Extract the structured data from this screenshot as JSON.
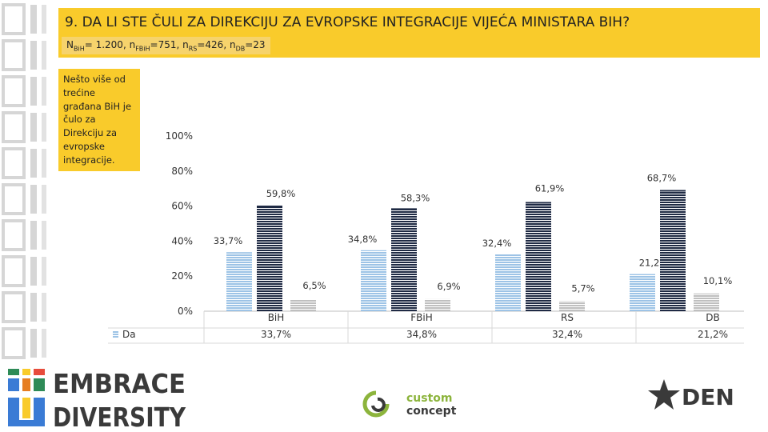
{
  "header": {
    "title": "9. DA LI STE ČULI ZA DIREKCIJU ZA EVROPSKE INTEGRACIJE VIJEĆA MINISTARA BIH?",
    "samples": [
      {
        "label": "N",
        "sub": "BiH",
        "value": "= 1.200, "
      },
      {
        "label": "n",
        "sub": "FBiH",
        "value": "=751, "
      },
      {
        "label": "n",
        "sub": "RS",
        "value": "=426, "
      },
      {
        "label": "n",
        "sub": "DB",
        "value": "=23"
      }
    ]
  },
  "note": {
    "text": "Nešto više od trećine građana BiH je čulo za Direkciju za evropske integracije."
  },
  "chart_data": {
    "type": "bar",
    "categories": [
      "BiH",
      "FBiH",
      "RS",
      "DB"
    ],
    "series": [
      {
        "name": "Da",
        "values": [
          33.7,
          34.8,
          32.4,
          21.2
        ],
        "labels": [
          "33,7%",
          "34,8%",
          "32,4%",
          "21,2%"
        ],
        "color": "#9dc3e6",
        "style": "horizontal-lines"
      },
      {
        "name": "",
        "values": [
          59.8,
          58.3,
          61.9,
          68.7
        ],
        "labels": [
          "59,8%",
          "58,3%",
          "61,9%",
          "68,7%"
        ],
        "color": "#1f2a44",
        "style": "horizontal-lines"
      },
      {
        "name": "",
        "values": [
          6.5,
          6.9,
          5.7,
          10.1
        ],
        "labels": [
          "6,5%",
          "6,9%",
          "5,7%",
          "10,1%"
        ],
        "color": "#bfbfbf",
        "style": "horizontal-lines"
      }
    ],
    "yticks": [
      "0%",
      "20%",
      "40%",
      "60%",
      "80%",
      "100%"
    ],
    "ylim": [
      0,
      100
    ],
    "table": {
      "legend_label": "Da",
      "values": [
        "33,7%",
        "34,8%",
        "32,4%",
        "21,2%"
      ]
    }
  },
  "logos": {
    "embrace_line1": "EMBRACE",
    "embrace_line2": "DIVERSITY",
    "custom_line1": "custom",
    "custom_line2": "concept",
    "den": "DEN"
  },
  "colors": {
    "yellow": "#f9cb2b",
    "blue": "#9dc3e6",
    "navy": "#1f2a44",
    "gray": "#bfbfbf"
  }
}
